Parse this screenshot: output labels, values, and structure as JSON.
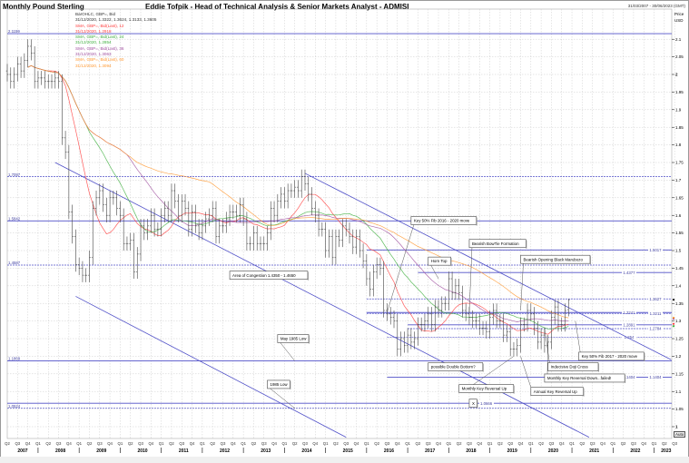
{
  "header": {
    "title": "Monthly Pound Sterling",
    "subtitle": "Eddie Tofpik - Head of Technical Analysis & Senior Markets Analyst - ADMISI",
    "date_range": "31/03/2007 - 30/06/2023 (GMT)",
    "auto_label": "Auto"
  },
  "legend": [
    {
      "label": "BarOHLC, GBP=, Bid",
      "value": "31/12/2020, 1.3322, 1.3624, 1.3133, 1.3605",
      "color": "#333333"
    },
    {
      "label": "SMA, GBP=, Bid(Last), 12",
      "value": "31/12/2020, 1.2918",
      "color": "#ff4040"
    },
    {
      "label": "SMA, GBP=, Bid(Last), 24",
      "value": "31/12/2020, 1.2854",
      "color": "#40b040"
    },
    {
      "label": "SMA, GBP=, Bid(Last), 36",
      "value": "31/12/2020, 1.3063",
      "color": "#a050a0"
    },
    {
      "label": "SMA, GBP=, Bid(Last), 60",
      "value": "31/12/2020, 1.3094",
      "color": "#ff9933"
    }
  ],
  "chart_data": {
    "type": "ohlc",
    "instrument": "GBP=",
    "frequency": "monthly",
    "start": "2007-04",
    "end": "2020-12",
    "axis_label": "Price USD",
    "ylim": [
      0.975,
      2.16
    ],
    "xlim": [
      "2007-04",
      "2023-06"
    ],
    "yticks": [
      1,
      1.05,
      1.1,
      1.15,
      1.2,
      1.25,
      1.3,
      1.35,
      1.4,
      1.45,
      1.5,
      1.55,
      1.6,
      1.65,
      1.7,
      1.75,
      1.8,
      1.85,
      1.9,
      1.95,
      2,
      2.05,
      2.1
    ],
    "ytick_labels": [
      "1",
      "1.05",
      "1.1",
      "1.15",
      "1.2",
      "1.25",
      "1.3",
      "1.35",
      "1.4",
      "1.45",
      "1.5",
      "1.55",
      "1.6",
      "1.65",
      "1.7",
      "1.75",
      "1.8",
      "1.85",
      "1.9",
      "1.95",
      "2",
      "2.05",
      "2.1"
    ],
    "years": [
      "2007",
      "2008",
      "2009",
      "2010",
      "2011",
      "2012",
      "2013",
      "2014",
      "2015",
      "2016",
      "2017",
      "2018",
      "2019",
      "2020",
      "2021",
      "2022",
      "2023"
    ],
    "quarters": [
      "Q1",
      "Q2",
      "Q3",
      "Q4"
    ],
    "grid": true,
    "last_bar": {
      "date": "31/12/2020",
      "open": 1.3322,
      "high": 1.3624,
      "low": 1.3133,
      "close": 1.3605
    },
    "close": [
      2.0,
      1.98,
      2.0,
      2.03,
      2.01,
      2.04,
      2.08,
      2.06,
      1.98,
      1.99,
      1.99,
      1.98,
      1.98,
      1.98,
      1.99,
      1.98,
      1.82,
      1.78,
      1.61,
      1.54,
      1.46,
      1.45,
      1.43,
      1.43,
      1.48,
      1.62,
      1.65,
      1.67,
      1.63,
      1.6,
      1.65,
      1.65,
      1.62,
      1.6,
      1.52,
      1.52,
      1.53,
      1.44,
      1.49,
      1.57,
      1.55,
      1.57,
      1.6,
      1.56,
      1.56,
      1.6,
      1.62,
      1.6,
      1.67,
      1.64,
      1.6,
      1.64,
      1.62,
      1.56,
      1.61,
      1.57,
      1.55,
      1.57,
      1.59,
      1.6,
      1.62,
      1.54,
      1.57,
      1.57,
      1.59,
      1.61,
      1.61,
      1.6,
      1.63,
      1.59,
      1.52,
      1.52,
      1.55,
      1.52,
      1.52,
      1.52,
      1.55,
      1.62,
      1.6,
      1.64,
      1.66,
      1.64,
      1.67,
      1.67,
      1.68,
      1.67,
      1.71,
      1.69,
      1.66,
      1.62,
      1.6,
      1.56,
      1.56,
      1.5,
      1.54,
      1.48,
      1.54,
      1.53,
      1.57,
      1.56,
      1.54,
      1.51,
      1.54,
      1.5,
      1.47,
      1.42,
      1.39,
      1.44,
      1.46,
      1.45,
      1.33,
      1.32,
      1.31,
      1.3,
      1.22,
      1.25,
      1.23,
      1.26,
      1.24,
      1.25,
      1.29,
      1.29,
      1.3,
      1.32,
      1.29,
      1.34,
      1.33,
      1.35,
      1.35,
      1.42,
      1.38,
      1.4,
      1.38,
      1.33,
      1.32,
      1.31,
      1.3,
      1.3,
      1.28,
      1.28,
      1.27,
      1.31,
      1.33,
      1.3,
      1.3,
      1.26,
      1.27,
      1.22,
      1.22,
      1.23,
      1.29,
      1.29,
      1.33,
      1.32,
      1.28,
      1.24,
      1.26,
      1.23,
      1.24,
      1.31,
      1.34,
      1.29,
      1.29,
      1.33,
      1.3605
    ],
    "sma_periods": [
      12,
      24,
      36,
      60
    ],
    "levels": [
      {
        "price": 2.1159,
        "label": "2.1159",
        "from": "2007-04",
        "style": "solid",
        "side": "left"
      },
      {
        "price": 1.7097,
        "label": "1.7097",
        "from": "2007-04",
        "style": "dashed",
        "side": "left"
      },
      {
        "price": 1.5842,
        "label": "1.5842",
        "from": "2007-04",
        "style": "solid",
        "side": "left"
      },
      {
        "price": 1.4587,
        "label": "1.4587",
        "from": "2007-04",
        "style": "dashed",
        "side": "left"
      },
      {
        "price": 1.1869,
        "label": "1.1869",
        "from": "2007-04",
        "style": "solid",
        "side": "left"
      },
      {
        "price": 1.0524,
        "label": "1.0524",
        "from": "2007-04",
        "style": "dashed",
        "side": "left"
      },
      {
        "price": 1.0666,
        "label": "1.0666",
        "from": "2007-04",
        "style": "solid",
        "side": "x"
      },
      {
        "price": 1.5017,
        "label": "1.5017",
        "from": "2016-01",
        "style": "solid",
        "side": "right"
      },
      {
        "price": 1.4377,
        "label": "1.4377",
        "from": "2017-04",
        "style": "solid",
        "side": "right2"
      },
      {
        "price": 1.3627,
        "label": "1.3627",
        "from": "2016-01",
        "style": "dashed",
        "side": "right"
      },
      {
        "price": 1.3241,
        "label": "1.3241",
        "from": "2016-01",
        "style": "solid",
        "side": "right2"
      },
      {
        "price": 1.3211,
        "label": "1.3211",
        "from": "2016-01",
        "style": "dashed",
        "side": "right"
      },
      {
        "price": 1.2891,
        "label": "1.2891",
        "from": "2017-01",
        "style": "solid",
        "side": "right2"
      },
      {
        "price": 1.2784,
        "label": "1.2784",
        "from": "2017-01",
        "style": "dashed",
        "side": "right"
      },
      {
        "price": 1.254,
        "label": "1.254",
        "from": "2016-07",
        "style": "dashed",
        "side": "right2"
      },
      {
        "price": 1.1404,
        "label": "1.1404",
        "from": "2016-07",
        "style": "solid",
        "side": "right2"
      },
      {
        "price": 1.1404,
        "label": "1.1404",
        "from": "2016-07",
        "style": "none",
        "side": "right"
      }
    ],
    "trendlines": [
      {
        "from": [
          "2014-07",
          1.7192
        ],
        "to": [
          "2023-06",
          1.19
        ]
      },
      {
        "from": [
          "2008-06",
          1.75
        ],
        "to": [
          "2021-06",
          0.97
        ]
      },
      {
        "from": [
          "2008-12",
          1.37
        ],
        "to": [
          "2015-07",
          0.97
        ]
      }
    ],
    "annotations": [
      {
        "text": "Key 50% Fib 2016 - 2020 move",
        "box": [
          "2017-02",
          1.585
        ],
        "point": [
          "2016-07",
          1.325
        ]
      },
      {
        "text": "Bearish BowTie Formation",
        "box": [
          "2018-07",
          1.52
        ],
        "point": [
          "2018-07",
          1.325
        ]
      },
      {
        "text": "Horn Top",
        "box": [
          "2017-07",
          1.47
        ],
        "point": [
          "2017-10",
          1.42
        ]
      },
      {
        "text": "Bearish Opening Black Marubozo",
        "box": [
          "2019-10",
          1.475
        ],
        "point": [
          "2019-10",
          1.33
        ]
      },
      {
        "text": "Area of Congestion 1.4350 - 1.4650",
        "box": [
          "2012-09",
          1.43
        ],
        "point": null
      },
      {
        "text": "May 1985 Low",
        "box": [
          "2013-11",
          1.25
        ],
        "point": [
          "2014-04",
          1.1869
        ]
      },
      {
        "text": "1985 Low",
        "box": [
          "2013-08",
          1.12
        ],
        "point": [
          "2014-04",
          1.0524
        ]
      },
      {
        "text": "possible Double Bottom?",
        "box": [
          "2017-07",
          1.17
        ],
        "point": null
      },
      {
        "text": "Monthly Key Reversal Up",
        "box": [
          "2018-04",
          1.108
        ],
        "point": [
          "2019-08",
          1.2
        ]
      },
      {
        "text": "Annual Key Reversal Up",
        "box": [
          "2020-01",
          1.1
        ],
        "point": [
          "2019-10",
          1.2
        ]
      },
      {
        "text": "Indecisive Doji Cross",
        "box": [
          "2020-06",
          1.17
        ],
        "point": [
          "2020-05",
          1.28
        ]
      },
      {
        "text": "Monthly Key Reversal Down...failed!",
        "box": [
          "2020-05",
          1.138
        ],
        "point": [
          "2020-06",
          1.26
        ]
      },
      {
        "text": "Key 50% Fib 2017 - 2020 move",
        "box": [
          "2021-03",
          1.2
        ],
        "point": [
          "2021-02",
          1.3
        ]
      },
      {
        "text": "X",
        "box": [
          "2018-07",
          1.0666
        ],
        "point": null
      }
    ]
  }
}
